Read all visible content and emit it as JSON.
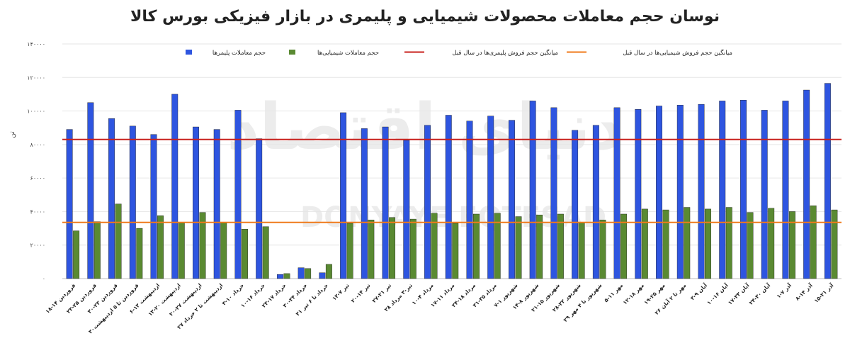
{
  "chart_data": {
    "type": "bar",
    "title": "نوسان حجم معاملات محصولات شیمیایی و پلیمری در بازار فیزیکی بورس کالا",
    "ylabel": "تن",
    "xlabel": "",
    "ylim": [
      0,
      140000
    ],
    "yticks": [
      "۰",
      "۲۰۰۰۰",
      "۴۰۰۰۰",
      "۶۰۰۰۰",
      "۸۰۰۰۰",
      "۱۰۰۰۰۰",
      "۱۲۰۰۰۰",
      "۱۴۰۰۰۰"
    ],
    "ytick_values": [
      0,
      20000,
      40000,
      60000,
      80000,
      100000,
      120000,
      140000
    ],
    "grid": true,
    "legend_position": "top",
    "categories": [
      "۱۸-۱۴ فروردین",
      "۲۳-۲۵ فروردین",
      "۳۰-۲۳ فروردین",
      "۳۰فروردین تا ۵ اردیبهشت",
      "۶-۱۳ اردیبهشت",
      "۱۳-۲۰ اردیبهشت",
      "۲۰-۲۷ اردیبهشت",
      "۲۷ اردیبهشت تا ۲ خرداد",
      "۳-۱۰ خرداد",
      "۱۰-۱۶ خرداد",
      "۲۳-۱۷ خرداد",
      "۳۰-۲۴ خرداد",
      "۳۱ خرداد تا ۶ تیر",
      "۱۳-۷ تیر",
      "۲۰-۱۴ تیر",
      "۲۷-۲۱ تیر",
      "۲۸ تیر-۳ مرداد",
      "۱۰-۴ مرداد",
      "۱۷-۱۱ مرداد",
      "۲۴-۱۸ مرداد",
      "۳۱-۲۵ مرداد",
      "۷-۱ شهریور",
      "۱۴-۸ شهریور",
      "۲۱-۱۵ شهریور",
      "۲۸-۲۲ شهریور",
      "۲۹ شهریور تا ۴ مهر",
      "۵-۱۱ مهر",
      "۱۲-۱۸ مهر",
      "۱۹-۲۵ مهر",
      "۲۶ مهر تا ۲ آبان",
      "۳-۹ آبان",
      "۱۰-۱۶ آبان",
      "۱۷-۲۳ آبان",
      "۲۴-۳۰ آبان",
      "۱-۷ آذر",
      "۸-۱۴ آذر",
      "۱۵-۲۱ آذر"
    ],
    "series": [
      {
        "name": "حجم معاملات پلیمرها",
        "color": "#2e55e0",
        "values": [
          89000,
          105000,
          95500,
          91000,
          86000,
          110000,
          90500,
          89000,
          100500,
          83500,
          2500,
          6500,
          3500,
          99000,
          89500,
          90500,
          82500,
          91500,
          97500,
          94000,
          97000,
          94500,
          106000,
          102000,
          88500,
          91500,
          102000,
          101000,
          103000,
          103500,
          104000,
          106000,
          106500,
          100500,
          106000,
          112500,
          116500
        ]
      },
      {
        "name": "حجم معاملات شیمیایی‌ها",
        "color": "#5a8a32",
        "values": [
          28500,
          34000,
          44500,
          30000,
          37500,
          33500,
          39500,
          33500,
          29500,
          31000,
          3000,
          6000,
          8500,
          33000,
          35000,
          36500,
          35500,
          39000,
          33000,
          38500,
          39000,
          37000,
          38000,
          38500,
          33500,
          35000,
          38500,
          41500,
          41000,
          42500,
          41500,
          42500,
          39500,
          42000,
          40000,
          43500,
          41000
        ]
      }
    ],
    "reference_lines": [
      {
        "name": "میانگین حجم فروش پلیمری‌ها در سال قبل",
        "value": 83000,
        "color": "#c8201c"
      },
      {
        "name": "میانگین حجم فروش شیمیایی‌ها در سال قبل",
        "value": 33500,
        "color": "#ef7a1a"
      }
    ]
  }
}
